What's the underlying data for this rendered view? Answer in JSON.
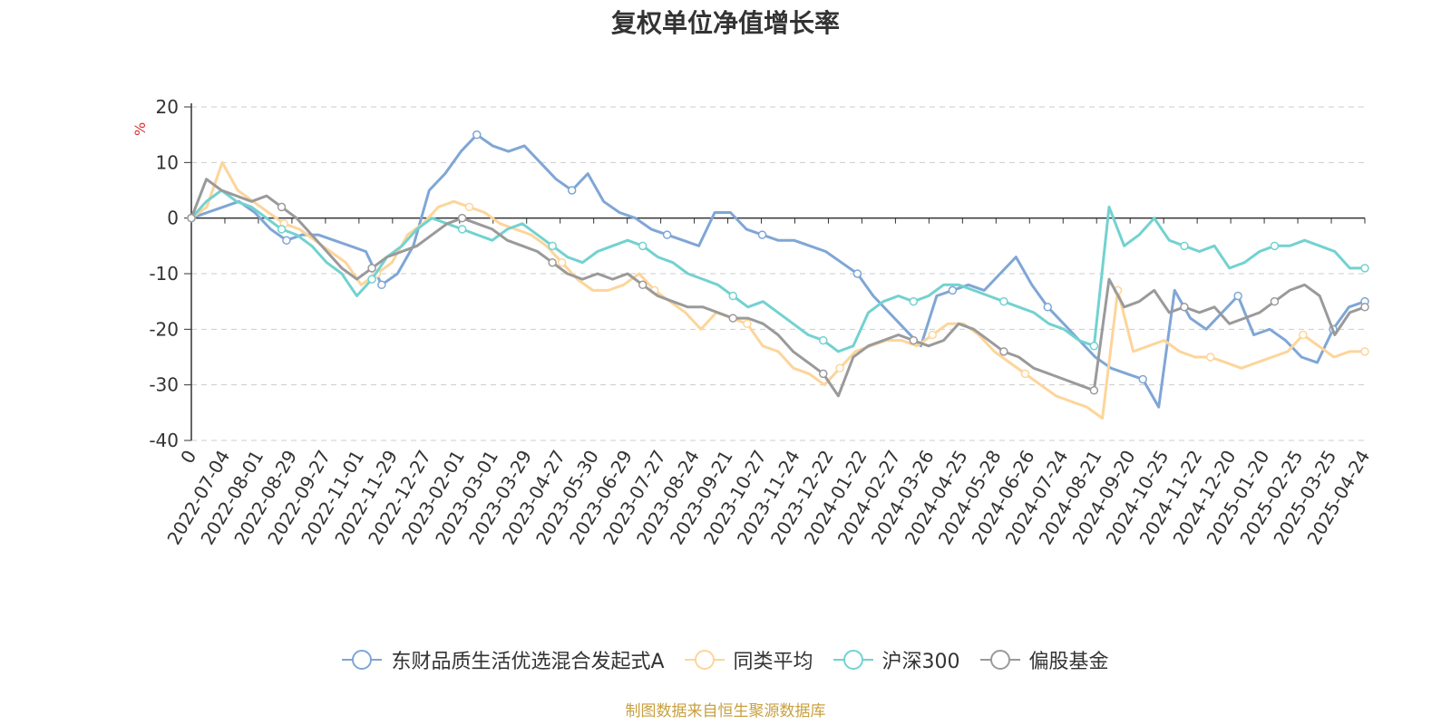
{
  "chart_data": {
    "type": "line",
    "title": "复权单位净值增长率",
    "ylabel": "%",
    "ylim": [
      -40,
      20
    ],
    "yticks": [
      20,
      10,
      0,
      -10,
      -20,
      -30,
      -40
    ],
    "grid": true,
    "legend_position": "bottom",
    "x_tick_labels": [
      "0",
      "2022-07-04",
      "2022-08-01",
      "2022-08-29",
      "2022-09-27",
      "2022-11-01",
      "2022-11-29",
      "2022-12-27",
      "2023-02-01",
      "2023-03-01",
      "2023-03-29",
      "2023-04-27",
      "2023-05-30",
      "2023-06-29",
      "2023-07-27",
      "2023-08-24",
      "2023-09-21",
      "2023-10-27",
      "2023-11-24",
      "2023-12-22",
      "2024-01-22",
      "2024-02-27",
      "2024-03-26",
      "2024-04-25",
      "2024-05-28",
      "2024-06-26",
      "2024-07-24",
      "2024-08-21",
      "2024-09-20",
      "2024-10-25",
      "2024-11-22",
      "2024-12-20",
      "2025-01-20",
      "2025-02-25",
      "2025-03-25",
      "2025-04-24"
    ],
    "series": [
      {
        "name": "东财品质生活优选混合发起式A",
        "color": "#7fa6d6",
        "values": [
          0,
          1,
          2,
          3,
          1,
          -2,
          -4,
          -3,
          -3,
          -4,
          -5,
          -6,
          -12,
          -10,
          -5,
          5,
          8,
          12,
          15,
          13,
          12,
          13,
          10,
          7,
          5,
          8,
          3,
          1,
          0,
          -2,
          -3,
          -4,
          -5,
          1,
          1,
          -2,
          -3,
          -4,
          -4,
          -5,
          -6,
          -8,
          -10,
          -14,
          -17,
          -20,
          -23,
          -14,
          -13,
          -12,
          -13,
          -10,
          -7,
          -12,
          -16,
          -19,
          -22,
          -25,
          -27,
          -28,
          -29,
          -34,
          -13,
          -18,
          -20,
          -17,
          -14,
          -21,
          -20,
          -22,
          -25,
          -26,
          -20,
          -16,
          -15
        ]
      },
      {
        "name": "同类平均",
        "color": "#fdd59a",
        "values": [
          0,
          2,
          10,
          5,
          3,
          1,
          -1,
          -2,
          -4,
          -6,
          -8,
          -12,
          -10,
          -8,
          -3,
          -1,
          2,
          3,
          2,
          1,
          -1,
          -2,
          -3,
          -5,
          -8,
          -11,
          -13,
          -13,
          -12,
          -10,
          -13,
          -15,
          -17,
          -20,
          -17,
          -18,
          -19,
          -23,
          -24,
          -27,
          -28,
          -30,
          -27,
          -24,
          -23,
          -22,
          -22,
          -23,
          -21,
          -19,
          -19,
          -21,
          -24,
          -26,
          -28,
          -30,
          -32,
          -33,
          -34,
          -36,
          -13,
          -24,
          -23,
          -22,
          -24,
          -25,
          -25,
          -26,
          -27,
          -26,
          -25,
          -24,
          -21,
          -23,
          -25,
          -24,
          -24
        ]
      },
      {
        "name": "沪深300",
        "color": "#72d2d0",
        "values": [
          0,
          3,
          5,
          3,
          2,
          0,
          -2,
          -3,
          -5,
          -8,
          -10,
          -14,
          -11,
          -7,
          -5,
          -2,
          0,
          -1,
          -2,
          -3,
          -4,
          -2,
          -1,
          -3,
          -5,
          -7,
          -8,
          -6,
          -5,
          -4,
          -5,
          -7,
          -8,
          -10,
          -11,
          -12,
          -14,
          -16,
          -15,
          -17,
          -19,
          -21,
          -22,
          -24,
          -23,
          -17,
          -15,
          -14,
          -15,
          -14,
          -12,
          -12,
          -13,
          -14,
          -15,
          -16,
          -17,
          -19,
          -20,
          -22,
          -23,
          2,
          -5,
          -3,
          0,
          -4,
          -5,
          -6,
          -5,
          -9,
          -8,
          -6,
          -5,
          -5,
          -4,
          -5,
          -6,
          -9,
          -9
        ]
      },
      {
        "name": "偏股基金",
        "color": "#9a9a9a",
        "values": [
          0,
          7,
          5,
          4,
          3,
          4,
          2,
          0,
          -3,
          -6,
          -9,
          -11,
          -9,
          -7,
          -6,
          -5,
          -3,
          -1,
          0,
          -1,
          -2,
          -4,
          -5,
          -6,
          -8,
          -10,
          -11,
          -10,
          -11,
          -10,
          -12,
          -14,
          -15,
          -16,
          -16,
          -17,
          -18,
          -18,
          -19,
          -21,
          -24,
          -26,
          -28,
          -32,
          -25,
          -23,
          -22,
          -21,
          -22,
          -23,
          -22,
          -19,
          -20,
          -22,
          -24,
          -25,
          -27,
          -28,
          -29,
          -30,
          -31,
          -11,
          -16,
          -15,
          -13,
          -17,
          -16,
          -17,
          -16,
          -19,
          -18,
          -17,
          -15,
          -13,
          -12,
          -14,
          -21,
          -17,
          -16
        ]
      }
    ]
  },
  "legend": [
    {
      "label": "东财品质生活优选混合发起式A",
      "color": "#7fa6d6"
    },
    {
      "label": "同类平均",
      "color": "#fdd59a"
    },
    {
      "label": "沪深300",
      "color": "#72d2d0"
    },
    {
      "label": "偏股基金",
      "color": "#9a9a9a"
    }
  ],
  "source": "制图数据来自恒生聚源数据库"
}
